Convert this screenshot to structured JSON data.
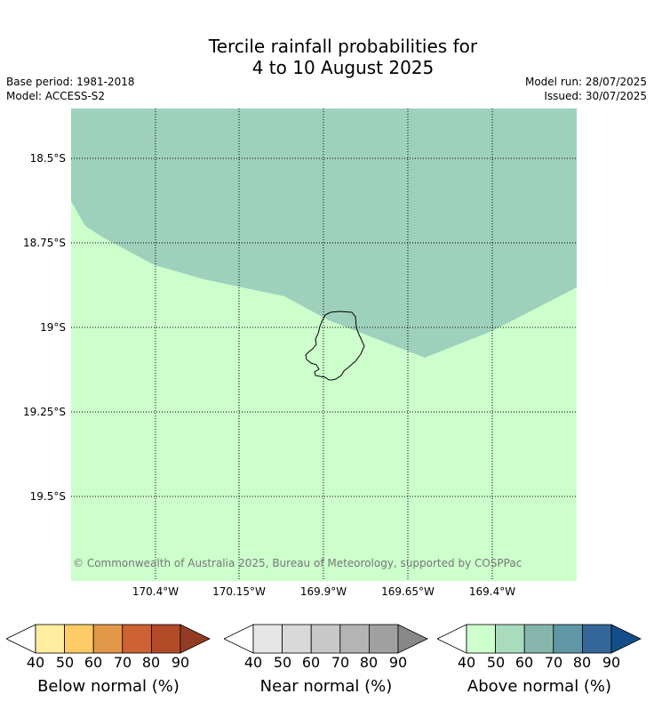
{
  "title": {
    "line1": "Tercile rainfall probabilities for",
    "line2": "4 to 10 August 2025"
  },
  "meta": {
    "base_period": "Base period: 1981-2018",
    "model": "Model: ACCESS-S2",
    "model_run": "Model run: 28/07/2025",
    "issued": "Issued: 30/07/2025"
  },
  "map": {
    "lat_labels": [
      "18.5°S",
      "18.75°S",
      "19°S",
      "19.25°S",
      "19.5°S"
    ],
    "lon_labels": [
      "170.4°W",
      "170.15°W",
      "169.9°W",
      "169.65°W",
      "169.4°W"
    ],
    "copyright": "© Commonwealth of Australia 2025, Bureau of Meteorology, supported by COSPPac",
    "colors": {
      "above_50_60": "#ccffcc",
      "above_60_70": "#9ed1bb",
      "coastline": "#000000",
      "gridline": "#000000"
    }
  },
  "colorbars": [
    {
      "label": "Below normal (%)",
      "ticks": [
        "40",
        "50",
        "60",
        "70",
        "80",
        "90"
      ],
      "colors": [
        "#ffeda0",
        "#fecc66",
        "#e39748",
        "#cd6132",
        "#b24a28",
        "#943c23"
      ]
    },
    {
      "label": "Near normal (%)",
      "ticks": [
        "40",
        "50",
        "60",
        "70",
        "80",
        "90"
      ],
      "colors": [
        "#e6e6e6",
        "#d9d9d9",
        "#c8c8c8",
        "#b4b4b4",
        "#a0a0a0",
        "#888888"
      ]
    },
    {
      "label": "Above normal (%)",
      "ticks": [
        "40",
        "50",
        "60",
        "70",
        "80",
        "90"
      ],
      "colors": [
        "#ccffcc",
        "#a8dcbd",
        "#86b6ab",
        "#5f98a4",
        "#336799",
        "#134e8a"
      ]
    }
  ]
}
